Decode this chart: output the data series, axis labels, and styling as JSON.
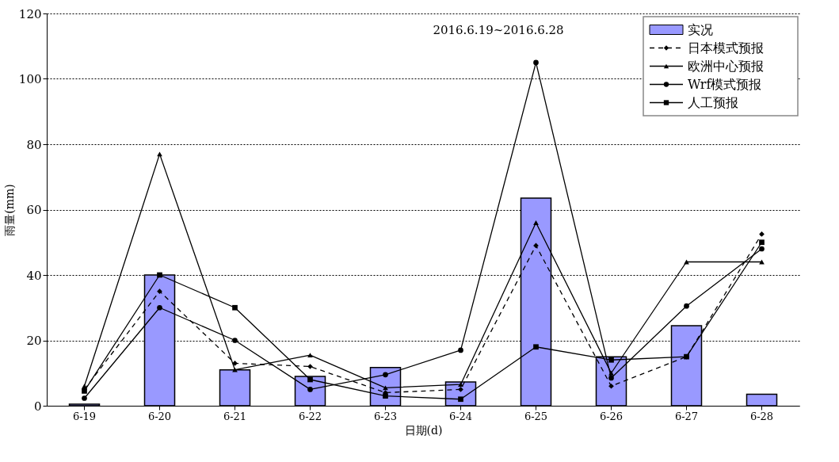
{
  "chart_data": {
    "type": "bar",
    "categories": [
      "6-19",
      "6-20",
      "6-21",
      "6-22",
      "6-23",
      "6-24",
      "6-25",
      "6-26",
      "6-27",
      "6-28"
    ],
    "xlabel": "日期(d)",
    "ylabel": "雨量(mm)",
    "annotations": [
      "2016.6.19~2016.6.28"
    ],
    "ylim": [
      0,
      120
    ],
    "yticks": [
      0,
      20,
      40,
      60,
      80,
      100,
      120
    ],
    "grid": "y",
    "legend": "top right",
    "series": [
      {
        "name": "实况",
        "color": "#9999ff",
        "values": [
          0.5,
          40,
          11,
          9,
          11.7,
          7.3,
          63.5,
          15,
          24.5,
          3.5
        ]
      },
      {
        "name": "日本模式预报",
        "type": "line",
        "color": "#000000",
        "marker": "diamond",
        "line_style": "dashed",
        "values": [
          5,
          35,
          13,
          12,
          4,
          5,
          49,
          6,
          15,
          52.5
        ]
      },
      {
        "name": "欧洲中心预报",
        "type": "line",
        "color": "#000000",
        "marker": "triangle",
        "line_style": "solid",
        "values": [
          6,
          77,
          11,
          15.5,
          5.5,
          6.5,
          56,
          10,
          44,
          44
        ]
      },
      {
        "name": "Wrf模式预报",
        "type": "line",
        "color": "#000000",
        "marker": "circle",
        "line_style": "solid",
        "values": [
          2.3,
          30,
          20,
          5,
          9.5,
          17,
          105,
          8.5,
          30.5,
          48
        ]
      },
      {
        "name": "人工预报",
        "type": "line",
        "color": "#000000",
        "marker": "square",
        "line_style": "solid",
        "values": [
          4.5,
          40,
          30,
          8,
          3,
          2,
          18,
          14,
          15,
          50
        ]
      }
    ]
  }
}
